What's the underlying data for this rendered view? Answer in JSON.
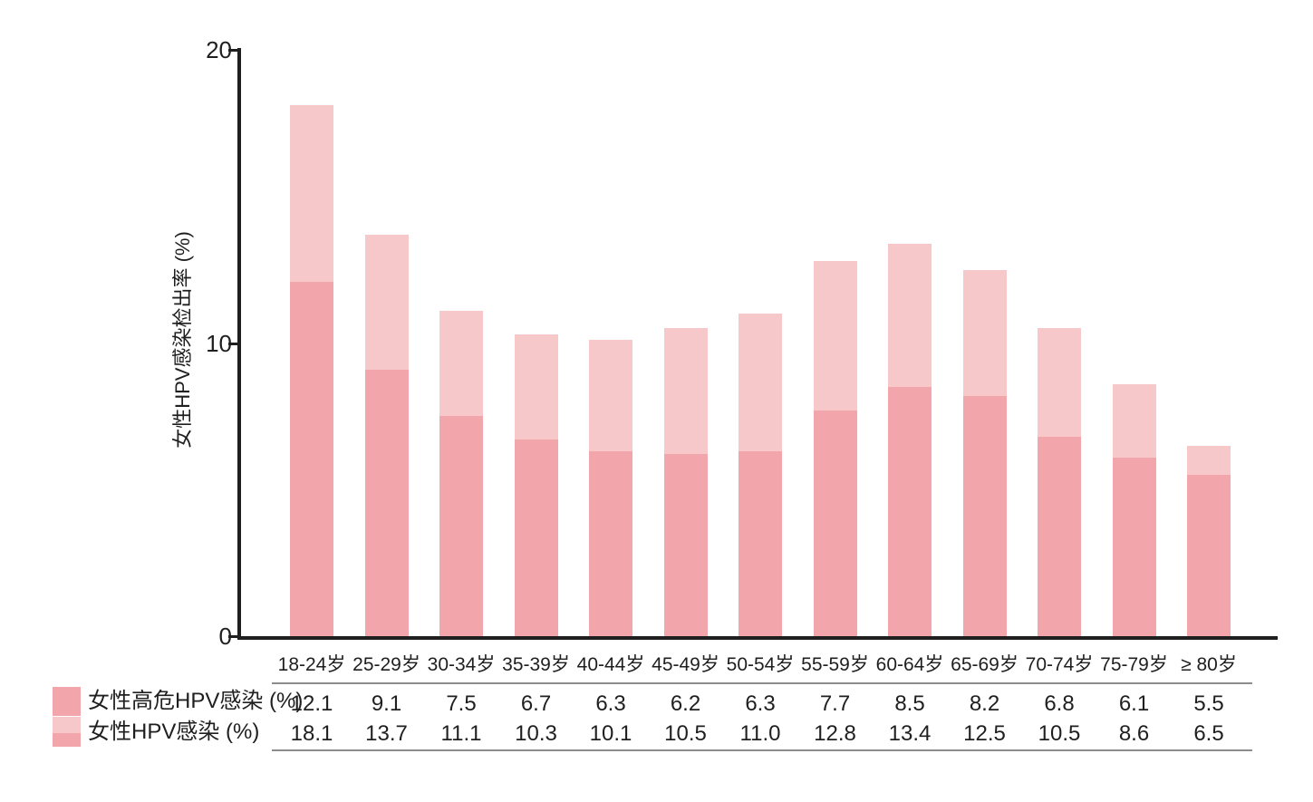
{
  "chart_data": {
    "type": "bar",
    "bar_style": "overlay",
    "title": "",
    "xlabel": "",
    "ylabel": "女性HPV感染检出率 (%)",
    "ylim": [
      0,
      20
    ],
    "yticks": [
      0,
      10,
      20
    ],
    "grid": false,
    "legend_position": "bottom-left",
    "categories": [
      "18-24岁",
      "25-29岁",
      "30-34岁",
      "35-39岁",
      "40-44岁",
      "45-49岁",
      "50-54岁",
      "55-59岁",
      "60-64岁",
      "65-69岁",
      "70-74岁",
      "75-79岁",
      "≥ 80岁"
    ],
    "series": [
      {
        "name": "女性高危HPV感染 (%)",
        "color": "#F2A5AA",
        "values": [
          12.1,
          9.1,
          7.5,
          6.7,
          6.3,
          6.2,
          6.3,
          7.7,
          8.5,
          8.2,
          6.8,
          6.1,
          5.5
        ],
        "value_labels": [
          "12.1",
          "9.1",
          "7.5",
          "6.7",
          "6.3",
          "6.2",
          "6.3",
          "7.7",
          "8.5",
          "8.2",
          "6.8",
          "6.1",
          "5.5"
        ]
      },
      {
        "name": "女性HPV感染 (%)",
        "color": "#F6C8C9",
        "values": [
          18.1,
          13.7,
          11.1,
          10.3,
          10.1,
          10.5,
          11.0,
          12.8,
          13.4,
          12.5,
          10.5,
          8.6,
          6.5
        ],
        "value_labels": [
          "18.1",
          "13.7",
          "11.1",
          "10.3",
          "10.1",
          "10.5",
          "11.0",
          "12.8",
          "13.4",
          "12.5",
          "10.5",
          "8.6",
          "6.5"
        ]
      }
    ]
  },
  "colors": {
    "axis": "#1f1f1f",
    "table_rule": "#8c8c8c",
    "text": "#1f1f1f",
    "background": "#ffffff"
  }
}
